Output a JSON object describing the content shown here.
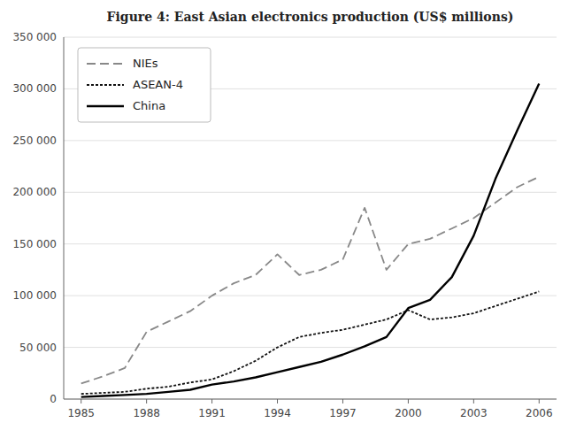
{
  "chart_data": {
    "type": "line",
    "title": "Figure 4: East Asian electronics production (US$ millions)",
    "x": [
      1985,
      1986,
      1987,
      1988,
      1989,
      1990,
      1991,
      1992,
      1993,
      1994,
      1995,
      1996,
      1997,
      1998,
      1999,
      2000,
      2001,
      2002,
      2003,
      2004,
      2005,
      2006
    ],
    "series": [
      {
        "name": "NIEs",
        "color": "#888888",
        "line_style": "dashed",
        "values": [
          15000,
          22000,
          30000,
          65000,
          75000,
          85000,
          100000,
          112000,
          120000,
          140000,
          120000,
          125000,
          135000,
          185000,
          125000,
          150000,
          155000,
          165000,
          175000,
          190000,
          205000,
          215000
        ]
      },
      {
        "name": "ASEAN-4",
        "color": "#111111",
        "line_style": "dotted",
        "values": [
          5000,
          6000,
          7000,
          10000,
          12000,
          16000,
          19000,
          27000,
          37000,
          50000,
          60000,
          64000,
          67000,
          72000,
          77000,
          86000,
          77000,
          79000,
          83000,
          90000,
          97000,
          104000
        ]
      },
      {
        "name": "China",
        "color": "#000000",
        "line_style": "solid",
        "values": [
          2000,
          3000,
          4000,
          5000,
          7000,
          9000,
          14000,
          17000,
          21000,
          26000,
          31000,
          36000,
          43000,
          51000,
          60000,
          88000,
          96000,
          118000,
          158000,
          213000,
          260000,
          305000
        ]
      }
    ],
    "xlim": [
      1984.2,
      2006.8
    ],
    "xticks": [
      1985,
      1988,
      1991,
      1994,
      1997,
      2000,
      2003,
      2006
    ],
    "ylim": [
      0,
      350000
    ],
    "yticks": [
      0,
      {
        "value": 50000,
        "label": "50 000"
      },
      {
        "value": 100000,
        "label": "100 000"
      },
      {
        "value": 150000,
        "label": "150 000"
      },
      {
        "value": 200000,
        "label": "200 000"
      },
      {
        "value": 250000,
        "label": "250 000"
      },
      {
        "value": 300000,
        "label": "300 000"
      },
      {
        "value": 350000,
        "label": "350 000"
      }
    ],
    "grid": true,
    "legend": "upper left"
  }
}
